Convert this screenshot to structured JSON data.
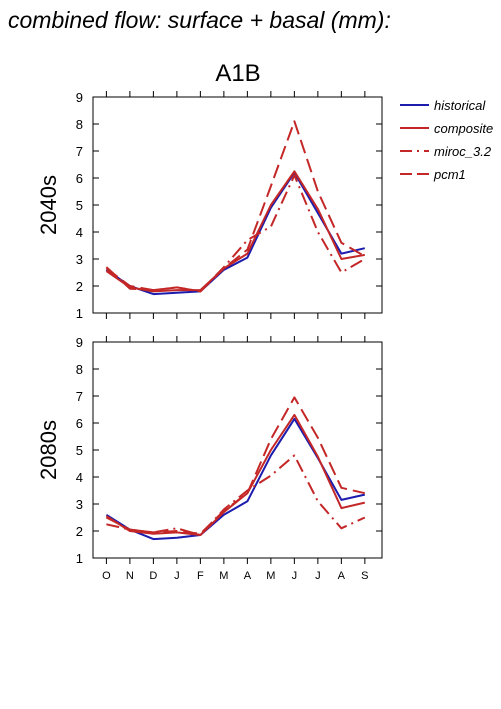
{
  "page_title": "combined flow: surface + basal (mm):",
  "colors": {
    "historical": "#1c1caf",
    "scenario": "#c42727",
    "axis": "#000000"
  },
  "chart_data": [
    {
      "type": "line",
      "title": "A1B",
      "panel_label": "2040s",
      "x": [
        "O",
        "N",
        "D",
        "J",
        "F",
        "M",
        "A",
        "M",
        "J",
        "J",
        "A",
        "S"
      ],
      "ylim": [
        1,
        9
      ],
      "yticks": [
        1,
        2,
        3,
        4,
        5,
        6,
        7,
        8,
        9
      ],
      "grid": false,
      "legend_position": "right",
      "series": [
        {
          "name": "historical",
          "style": "solid",
          "color": "#1c1caf",
          "values": [
            2.6,
            2.0,
            1.7,
            1.75,
            1.8,
            2.6,
            3.05,
            4.9,
            6.2,
            4.7,
            3.2,
            3.4
          ]
        },
        {
          "name": "composite",
          "style": "solid",
          "color": "#c42727",
          "values": [
            2.55,
            1.95,
            1.8,
            1.85,
            1.85,
            2.65,
            3.2,
            5.0,
            6.25,
            4.85,
            3.0,
            3.15
          ]
        },
        {
          "name": "miroc_3.2",
          "style": "dashdot",
          "color": "#c42727",
          "values": [
            2.7,
            1.9,
            1.85,
            1.95,
            1.8,
            2.7,
            3.7,
            4.2,
            6.1,
            4.0,
            2.5,
            3.0
          ]
        },
        {
          "name": "pcm1",
          "style": "dashed",
          "color": "#c42727",
          "values": [
            2.65,
            2.0,
            1.85,
            1.95,
            1.8,
            2.65,
            3.35,
            5.7,
            8.1,
            5.5,
            3.6,
            3.1
          ]
        }
      ]
    },
    {
      "type": "line",
      "title": "",
      "panel_label": "2080s",
      "x": [
        "O",
        "N",
        "D",
        "J",
        "F",
        "M",
        "A",
        "M",
        "J",
        "J",
        "A",
        "S"
      ],
      "ylim": [
        1,
        9
      ],
      "yticks": [
        1,
        2,
        3,
        4,
        5,
        6,
        7,
        8,
        9
      ],
      "grid": false,
      "series": [
        {
          "name": "historical",
          "style": "solid",
          "color": "#1c1caf",
          "values": [
            2.6,
            2.05,
            1.7,
            1.75,
            1.85,
            2.6,
            3.1,
            4.8,
            6.15,
            4.7,
            3.15,
            3.35
          ]
        },
        {
          "name": "composite",
          "style": "solid",
          "color": "#c42727",
          "values": [
            2.55,
            2.0,
            1.9,
            1.95,
            1.85,
            2.7,
            3.4,
            5.0,
            6.3,
            4.75,
            2.85,
            3.05
          ]
        },
        {
          "name": "miroc_3.2",
          "style": "dashdot",
          "color": "#c42727",
          "values": [
            2.25,
            2.05,
            1.95,
            2.1,
            1.85,
            2.8,
            3.5,
            4.05,
            4.8,
            3.1,
            2.1,
            2.5
          ]
        },
        {
          "name": "pcm1",
          "style": "dashed",
          "color": "#c42727",
          "values": [
            2.5,
            2.05,
            1.95,
            2.0,
            1.9,
            2.75,
            3.4,
            5.4,
            6.95,
            5.45,
            3.6,
            3.4
          ]
        }
      ]
    }
  ]
}
